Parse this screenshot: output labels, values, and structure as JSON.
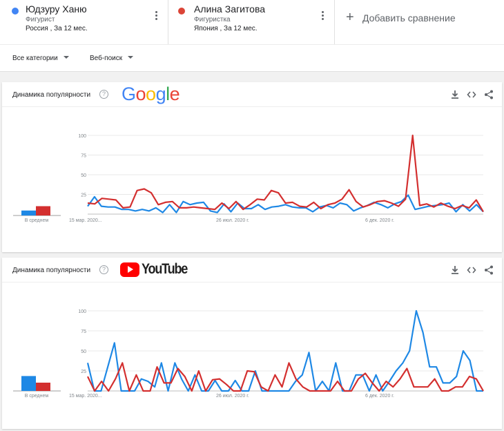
{
  "terms": [
    {
      "name": "Юдзуру Ханю",
      "type": "Фигурист",
      "meta": "Россия , За 12 мес.",
      "color": "#4285f4"
    },
    {
      "name": "Алина Загитова",
      "type": "Фигуристка",
      "meta": "Япония , За 12 мес.",
      "color": "#db4437"
    }
  ],
  "add_compare": {
    "label": "Добавить сравнение",
    "icon": "plus-icon"
  },
  "filters": {
    "category": "Все категории",
    "search_type": "Веб-поиск"
  },
  "colors": {
    "series1": "#1e88e5",
    "series2": "#d32f2f",
    "grid": "#e8e8e8",
    "axis_text": "#80868b"
  },
  "cards": [
    {
      "title": "Динамика популярности",
      "logo": "Google",
      "tools": [
        "download-icon",
        "embed-icon",
        "share-icon"
      ]
    },
    {
      "title": "Динамика популярности",
      "logo": "YouTube",
      "tools": [
        "download-icon",
        "embed-icon",
        "share-icon"
      ]
    }
  ],
  "chart_data": [
    {
      "type": "line",
      "source": "Google",
      "x_ticks": [
        "15 мар. 2020...",
        "26 июл. 2020 г.",
        "6 дек. 2020 г."
      ],
      "y_ticks": [
        100,
        75,
        50,
        25
      ],
      "ylim": [
        0,
        100
      ],
      "avg_label": "В среднем",
      "averages": {
        "Юдзуру Ханю": 8,
        "Алина Загитова": 15
      },
      "series": [
        {
          "name": "Юдзуру Ханю",
          "values": [
            10,
            22,
            10,
            9,
            9,
            6,
            6,
            4,
            6,
            4,
            8,
            2,
            12,
            2,
            16,
            12,
            14,
            15,
            4,
            2,
            13,
            3,
            14,
            7,
            7,
            12,
            6,
            9,
            10,
            12,
            9,
            8,
            8,
            3,
            9,
            11,
            8,
            14,
            12,
            4,
            8,
            11,
            15,
            12,
            8,
            13,
            16,
            24,
            6,
            8,
            10,
            11,
            12,
            14,
            3,
            12,
            4,
            12,
            3
          ]
        },
        {
          "name": "Алина Загитова",
          "values": [
            14,
            13,
            20,
            19,
            18,
            8,
            9,
            30,
            32,
            27,
            12,
            15,
            16,
            8,
            8,
            9,
            8,
            7,
            6,
            14,
            7,
            16,
            6,
            12,
            19,
            18,
            30,
            27,
            14,
            15,
            10,
            9,
            15,
            7,
            12,
            14,
            19,
            31,
            16,
            9,
            12,
            16,
            17,
            14,
            10,
            19,
            100,
            11,
            13,
            9,
            14,
            10,
            7,
            11,
            8,
            18,
            3
          ]
        }
      ]
    },
    {
      "type": "line",
      "source": "YouTube",
      "x_ticks": [
        "15 мар. 2020...",
        "26 июл. 2020 г.",
        "6 дек. 2020 г."
      ],
      "y_ticks": [
        100,
        75,
        50,
        25
      ],
      "ylim": [
        0,
        100
      ],
      "avg_label": "В среднем",
      "averages": {
        "Юдзуру Ханю": 18,
        "Алина Загитова": 10
      },
      "series": [
        {
          "name": "Юдзуру Ханю",
          "values": [
            35,
            0,
            0,
            30,
            60,
            0,
            0,
            0,
            15,
            12,
            5,
            35,
            0,
            35,
            15,
            0,
            20,
            0,
            0,
            13,
            0,
            0,
            13,
            0,
            0,
            25,
            0,
            0,
            0,
            0,
            0,
            12,
            20,
            48,
            0,
            12,
            0,
            35,
            0,
            0,
            20,
            20,
            0,
            20,
            0,
            12,
            25,
            35,
            50,
            100,
            73,
            30,
            30,
            10,
            10,
            18,
            50,
            38,
            0,
            0
          ]
        },
        {
          "name": "Алина Загитова",
          "values": [
            18,
            0,
            12,
            0,
            15,
            35,
            0,
            20,
            0,
            0,
            30,
            10,
            10,
            28,
            18,
            0,
            25,
            0,
            14,
            15,
            8,
            0,
            0,
            25,
            24,
            5,
            0,
            20,
            5,
            35,
            15,
            5,
            0,
            0,
            0,
            0,
            12,
            0,
            0,
            15,
            22,
            10,
            0,
            12,
            5,
            15,
            28,
            5,
            5,
            5,
            15,
            0,
            0,
            5,
            5,
            18,
            15,
            0
          ]
        }
      ]
    }
  ]
}
